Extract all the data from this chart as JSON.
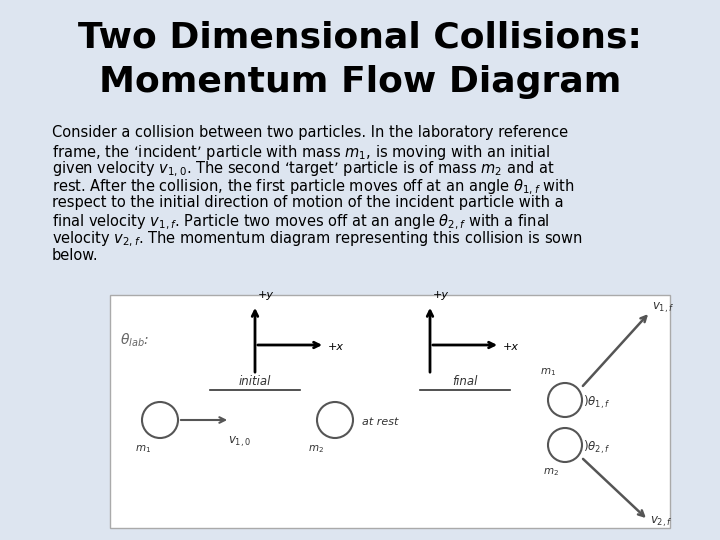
{
  "title_line1": "Two Dimensional Collisions:",
  "title_line2": "Momentum Flow Diagram",
  "title_fontsize": 26,
  "title_color": "#000000",
  "bg_color": "#dde5f0",
  "diagram_bg": "#ffffff",
  "body_text": [
    "Consider a collision between two particles. In the laboratory reference",
    "frame, the ‘incident’ particle with mass $m_1$, is moving with an initial",
    "given velocity $v_{1,0}$. The second ‘target’ particle is of mass $m_2$ and at",
    "rest. After the collision, the first particle moves off at an angle $\\theta_{1,f}$ with",
    "respect to the initial direction of motion of the incident particle with a",
    "final velocity $v_{1,f}$. Particle two moves off at an angle $\\theta_{2,f}$ with a final",
    "velocity $v_{2,f}$. The momentum diagram representing this collision is sown",
    "below."
  ],
  "body_fontsize": 10.5,
  "body_color": "#000000"
}
